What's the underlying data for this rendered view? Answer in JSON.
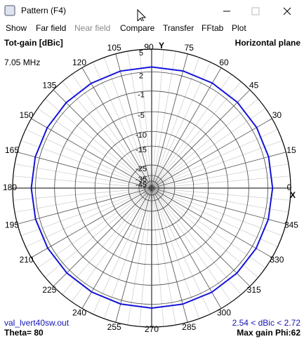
{
  "window": {
    "title": "Pattern   (F4)"
  },
  "menu": [
    "Show",
    "Far field",
    "Near field",
    "Compare",
    "Transfer",
    "FFtab",
    "Plot"
  ],
  "plot": {
    "gain_label": "Tot-gain [dBic]",
    "plane": "Horizontal plane",
    "frequency": "7.05 MHz",
    "y_axis": "Y",
    "x_axis": "X",
    "file": "val_lvert40sw.out",
    "range": "2.54 < dBic < 2.72",
    "theta": "Theta= 80",
    "max_gain": "Max gain Phi:62",
    "rmax": 5,
    "rticks": [
      5,
      2,
      -1,
      -5,
      -10,
      -15,
      -25,
      -35,
      -45
    ],
    "angle_ticks": [
      0,
      15,
      30,
      45,
      60,
      75,
      90,
      105,
      120,
      135,
      150,
      165,
      180,
      195,
      210,
      225,
      240,
      255,
      270,
      285,
      300,
      315,
      330,
      345
    ],
    "trace": {
      "color": "#1414d8",
      "angles": [
        0,
        15,
        30,
        45,
        60,
        75,
        90,
        105,
        120,
        135,
        150,
        165,
        180,
        195,
        210,
        225,
        240,
        255,
        270,
        285,
        300,
        315,
        330,
        345
      ],
      "values": [
        2.67,
        2.69,
        2.71,
        2.72,
        2.72,
        2.72,
        2.71,
        2.7,
        2.68,
        2.66,
        2.63,
        2.61,
        2.59,
        2.57,
        2.55,
        2.54,
        2.54,
        2.54,
        2.55,
        2.56,
        2.58,
        2.6,
        2.63,
        2.65
      ]
    }
  }
}
